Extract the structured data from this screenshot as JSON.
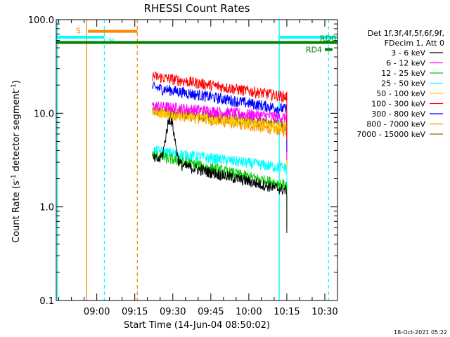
{
  "chart_data": {
    "type": "line",
    "title": "RHESSI Count Rates",
    "xlabel": "Start Time (14-Jun-04 08:50:02)",
    "ylabel_main": "Count Rate (s",
    "ylabel_sup": "-1",
    "ylabel_mid": " detector segment",
    "ylabel_sup2": "-1",
    "ylabel_end": ")",
    "yscale": "log",
    "ylim": [
      0.1,
      100.0
    ],
    "yticks": [
      {
        "value": 0.1,
        "label": "0.1"
      },
      {
        "value": 1.0,
        "label": "1.0"
      },
      {
        "value": 10.0,
        "label": "10.0"
      },
      {
        "value": 100.0,
        "label": "100.0"
      }
    ],
    "xlim_minutes": [
      -6,
      105
    ],
    "xticks": [
      {
        "value": 10,
        "label": "09:00"
      },
      {
        "value": 25,
        "label": "09:15"
      },
      {
        "value": 40,
        "label": "09:30"
      },
      {
        "value": 55,
        "label": "09:45"
      },
      {
        "value": 70,
        "label": "10:00"
      },
      {
        "value": 85,
        "label": "10:15"
      },
      {
        "value": 100,
        "label": "10:30"
      }
    ],
    "legend_header": [
      "Det 1f,3f,4f,5f,6f,9f,",
      "FDecim 1, Att 0"
    ],
    "legend_position": "right",
    "series": [
      {
        "name": "3 - 6 keV",
        "color": "#000000",
        "start": 3.3,
        "end": 1.5,
        "spike": true
      },
      {
        "name": "6 - 12 keV",
        "color": "#ff00ff",
        "start": 12.0,
        "end": 9.0,
        "spike": false
      },
      {
        "name": "12 - 25 keV",
        "color": "#00cc00",
        "start": 3.6,
        "end": 1.7,
        "spike": false
      },
      {
        "name": "25 - 50 keV",
        "color": "#00ffff",
        "start": 4.0,
        "end": 2.6,
        "spike": false
      },
      {
        "name": "50 - 100 keV",
        "color": "#ffcc00",
        "start": 10.5,
        "end": 7.0,
        "spike": false
      },
      {
        "name": "100 - 300 keV",
        "color": "#ff0000",
        "start": 25.0,
        "end": 15.0,
        "spike": false
      },
      {
        "name": "300 - 800 keV",
        "color": "#0000ff",
        "start": 19.0,
        "end": 11.0,
        "spike": false
      },
      {
        "name": "800 - 7000 keV",
        "color": "#ff8800",
        "start": 10.5,
        "end": 6.5,
        "spike": false
      },
      {
        "name": "7000 - 15000 keV",
        "color": "#996600",
        "start": 11.0,
        "end": 7.5,
        "spike": false
      }
    ],
    "data_window_minutes": [
      32,
      85
    ],
    "flags": [
      {
        "label": "S",
        "color": "#ff8800",
        "y": 75,
        "x0": 6.5,
        "x1": 26
      },
      {
        "label": "N",
        "color": "#00ffff",
        "y": 65,
        "x0": -6,
        "x1": 13
      },
      {
        "label": "",
        "color": "#00ffff",
        "y": 65,
        "x0": 82,
        "x1": 105
      },
      {
        "label": "",
        "color": "#008000",
        "y": 57,
        "x0": -6,
        "x1": 105
      },
      {
        "label": "RD0",
        "color": "#008000",
        "y": 57,
        "x0": 103,
        "x1": 105
      },
      {
        "label": "RD4",
        "color": "#008000",
        "y": 48,
        "x0": 100,
        "x1": 103
      }
    ],
    "vlines": [
      {
        "x": -5.5,
        "color": "#00ffff",
        "style": "solid"
      },
      {
        "x": 6.0,
        "color": "#ff8800",
        "style": "solid"
      },
      {
        "x": 13.0,
        "color": "#00ffff",
        "style": "dashed"
      },
      {
        "x": 26.0,
        "color": "#ff8800",
        "style": "dashed"
      },
      {
        "x": 82.0,
        "color": "#00ffff",
        "style": "solid"
      },
      {
        "x": 101.5,
        "color": "#00ffff",
        "style": "dashed"
      }
    ],
    "timestamp": "18-Oct-2021 05:22"
  }
}
